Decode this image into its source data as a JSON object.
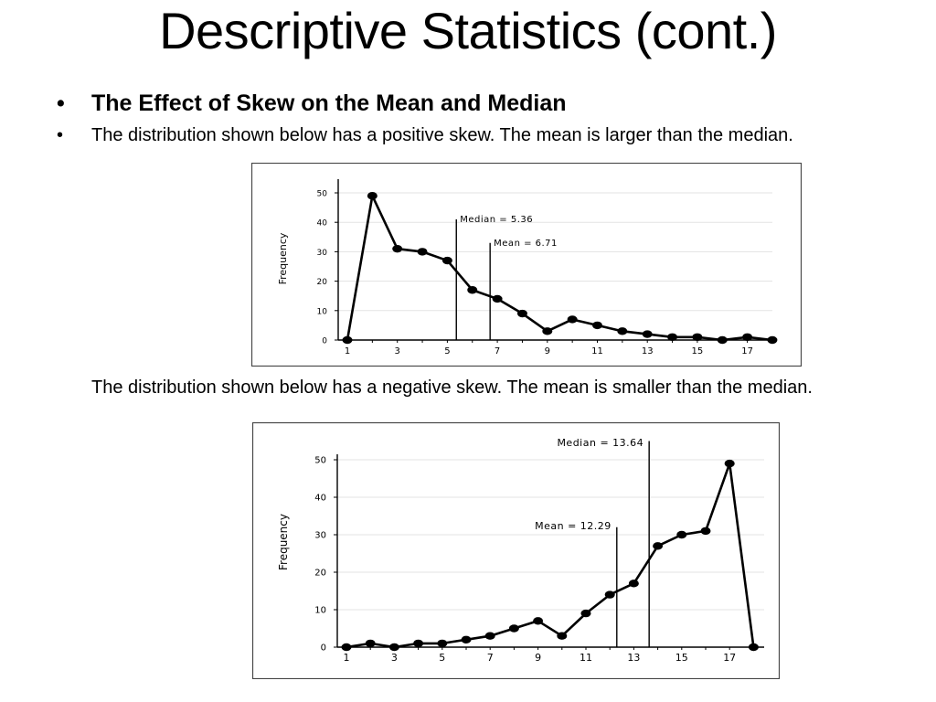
{
  "slide": {
    "title": "Descriptive Statistics (cont.)",
    "bullet_glyph": "•",
    "bullet1": "The Effect of Skew on the Mean and Median",
    "bullet2": "The distribution shown below has a positive skew. The mean is larger than the median.",
    "paragraph2": "The distribution shown below has a negative skew. The mean is smaller than the median."
  },
  "chart_data": [
    {
      "type": "line",
      "ylabel": "Frequency",
      "x": [
        1,
        2,
        3,
        4,
        5,
        6,
        7,
        8,
        9,
        10,
        11,
        12,
        13,
        14,
        15,
        16,
        17,
        18
      ],
      "values": [
        0,
        49,
        31,
        30,
        27,
        17,
        14,
        9,
        3,
        7,
        5,
        3,
        2,
        1,
        1,
        0,
        1,
        0
      ],
      "xticks": [
        "1",
        "3",
        "5",
        "7",
        "9",
        "11",
        "13",
        "15",
        "17"
      ],
      "yticks": [
        "0",
        "10",
        "20",
        "30",
        "40",
        "50"
      ],
      "ylim": [
        0,
        50
      ],
      "grid": true,
      "annotations": [
        {
          "label": "Median = 5.36",
          "x": 5.36,
          "y_top": 41
        },
        {
          "label": "Mean = 6.71",
          "x": 6.71,
          "y_top": 33
        }
      ]
    },
    {
      "type": "line",
      "ylabel": "Frequency",
      "x": [
        1,
        2,
        3,
        4,
        5,
        6,
        7,
        8,
        9,
        10,
        11,
        12,
        13,
        14,
        15,
        16,
        17,
        18
      ],
      "values": [
        0,
        1,
        0,
        1,
        1,
        2,
        3,
        5,
        7,
        3,
        9,
        14,
        17,
        27,
        30,
        31,
        49,
        0
      ],
      "xticks": [
        "1",
        "3",
        "5",
        "7",
        "9",
        "11",
        "13",
        "15",
        "17"
      ],
      "yticks": [
        "0",
        "10",
        "20",
        "30",
        "40",
        "50"
      ],
      "ylim": [
        0,
        50
      ],
      "grid": true,
      "annotations": [
        {
          "label": "Median = 13.64",
          "x": 13.64,
          "y_top": 55
        },
        {
          "label": "Mean = 12.29",
          "x": 12.29,
          "y_top": 32
        }
      ]
    }
  ]
}
